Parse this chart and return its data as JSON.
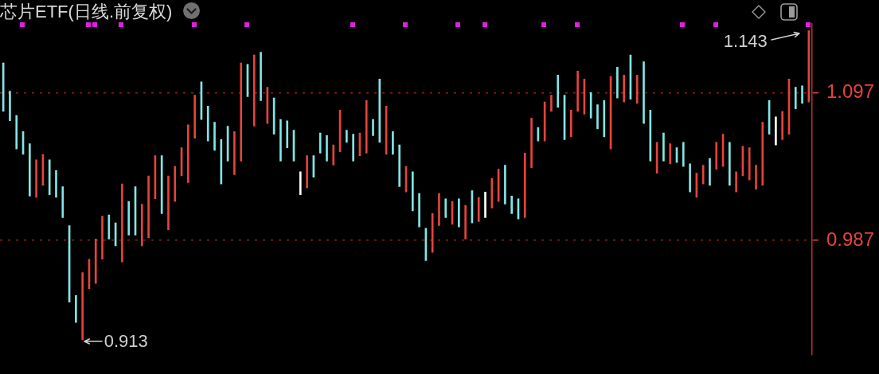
{
  "chart_data": {
    "type": "bar",
    "title": "芯片ETF(日线.前复权)",
    "categories": [
      null,
      null,
      null,
      null,
      null,
      null,
      null,
      null,
      null,
      null,
      null,
      null,
      null,
      null,
      null,
      null,
      null,
      null,
      null,
      null,
      null,
      null,
      null,
      null,
      null,
      null,
      null,
      null,
      null,
      null,
      null,
      null,
      null,
      null,
      null,
      null,
      null,
      null,
      null,
      null,
      null,
      null,
      null,
      null,
      null,
      null,
      null,
      null,
      null,
      null,
      null,
      null,
      null,
      null,
      null,
      null,
      null,
      null,
      null,
      null,
      null,
      null,
      null,
      null,
      null,
      null,
      null,
      null,
      null,
      null,
      null,
      null,
      null,
      null,
      null,
      null,
      null,
      null,
      null,
      null,
      null,
      null,
      null,
      null,
      null,
      null,
      null,
      null,
      null,
      null,
      null,
      null,
      null,
      null,
      null,
      null,
      null,
      null,
      null,
      null,
      null,
      null,
      null,
      null,
      null,
      null,
      null,
      null,
      null,
      null,
      null,
      null,
      null,
      null,
      null,
      null,
      null,
      null,
      null,
      null,
      null,
      null,
      null
    ],
    "base": [
      1.083,
      1.076,
      1.055,
      1.051,
      1.02,
      1.019,
      1.028,
      1.021,
      1.019,
      1.004,
      0.941,
      0.926,
      0.913,
      0.951,
      0.955,
      0.973,
      0.988,
      0.983,
      0.971,
      0.991,
      0.991,
      0.983,
      0.989,
      1.018,
      1.007,
      0.995,
      1.016,
      1.035,
      1.03,
      1.063,
      1.077,
      1.061,
      1.054,
      1.029,
      1.046,
      1.036,
      1.046,
      1.094,
      1.072,
      1.091,
      1.074,
      1.066,
      1.046,
      1.056,
      1.046,
      1.021,
      1.026,
      1.034,
      1.052,
      1.046,
      1.043,
      1.053,
      1.06,
      1.046,
      1.05,
      1.052,
      1.065,
      1.06,
      1.051,
      1.051,
      1.027,
      1.023,
      1.009,
      0.997,
      0.972,
      0.978,
      0.998,
      1.004,
      0.999,
      0.997,
      0.988,
      1.0,
      1.001,
      1.004,
      1.011,
      1.016,
      1.014,
      1.007,
      1.003,
      1.004,
      1.041,
      1.061,
      1.061,
      1.083,
      1.086,
      1.062,
      1.064,
      1.083,
      1.081,
      1.078,
      1.07,
      1.064,
      1.055,
      1.093,
      1.09,
      1.092,
      1.089,
      1.074,
      1.046,
      1.037,
      1.046,
      1.044,
      1.045,
      1.042,
      1.023,
      1.019,
      1.029,
      1.028,
      1.04,
      1.042,
      1.028,
      1.023,
      1.035,
      1.032,
      1.025,
      1.028,
      1.066,
      1.058,
      1.062,
      1.066,
      1.085,
      1.089,
      1.09
    ],
    "values": [
      0.036,
      0.022,
      0.025,
      0.017,
      0.039,
      0.028,
      0.023,
      0.026,
      0.02,
      0.023,
      0.057,
      0.02,
      0.05,
      0.022,
      0.033,
      0.032,
      0.018,
      0.017,
      0.058,
      0.025,
      0.036,
      0.031,
      0.046,
      0.032,
      0.043,
      0.04,
      0.026,
      0.021,
      0.043,
      0.032,
      0.028,
      0.026,
      0.021,
      0.033,
      0.026,
      0.032,
      0.073,
      0.024,
      0.053,
      0.036,
      0.027,
      0.027,
      0.031,
      0.02,
      0.023,
      0.017,
      0.024,
      0.016,
      0.015,
      0.019,
      0.015,
      0.031,
      0.009,
      0.02,
      0.017,
      0.039,
      0.012,
      0.047,
      0.036,
      0.017,
      0.031,
      0.019,
      0.029,
      0.025,
      0.024,
      0.029,
      0.024,
      0.014,
      0.017,
      0.021,
      0.025,
      0.024,
      0.018,
      0.019,
      0.022,
      0.024,
      0.029,
      0.013,
      0.015,
      0.048,
      0.037,
      0.01,
      0.029,
      0.012,
      0.024,
      0.033,
      0.02,
      0.03,
      0.026,
      0.019,
      0.018,
      0.027,
      0.054,
      0.023,
      0.02,
      0.033,
      0.021,
      0.046,
      0.038,
      0.023,
      0.021,
      0.015,
      0.011,
      0.018,
      0.021,
      0.018,
      0.014,
      0.02,
      0.02,
      0.024,
      0.032,
      0.015,
      0.022,
      0.024,
      0.018,
      0.047,
      0.025,
      0.021,
      0.021,
      0.041,
      0.016,
      0.013,
      0.053
    ],
    "colors": [
      "#80e6e6",
      "#80e6e6",
      "#80e6e6",
      "#80e6e6",
      "#80e6e6",
      "#e5433d",
      "#e5433d",
      "#80e6e6",
      "#80e6e6",
      "#80e6e6",
      "#80e6e6",
      "#80e6e6",
      "#e5433d",
      "#e5433d",
      "#e5433d",
      "#e5433d",
      "#80e6e6",
      "#80e6e6",
      "#e5433d",
      "#80e6e6",
      "#80e6e6",
      "#e5433d",
      "#e5433d",
      "#e5433d",
      "#80e6e6",
      "#e5433d",
      "#e5433d",
      "#e5433d",
      "#e5433d",
      "#e5433d",
      "#80e6e6",
      "#80e6e6",
      "#80e6e6",
      "#80e6e6",
      "#80e6e6",
      "#e5433d",
      "#e5433d",
      "#80e6e6",
      "#e5433d",
      "#80e6e6",
      "#e5433d",
      "#80e6e6",
      "#80e6e6",
      "#80e6e6",
      "#80e6e6",
      "#ffffff",
      "#e5433d",
      "#80e6e6",
      "#80e6e6",
      "#80e6e6",
      "#e5433d",
      "#e5433d",
      "#80e6e6",
      "#80e6e6",
      "#e5433d",
      "#e5433d",
      "#80e6e6",
      "#80e6e6",
      "#e5433d",
      "#80e6e6",
      "#80e6e6",
      "#e5433d",
      "#80e6e6",
      "#80e6e6",
      "#80e6e6",
      "#e5433d",
      "#e5433d",
      "#80e6e6",
      "#e5433d",
      "#80e6e6",
      "#e5433d",
      "#80e6e6",
      "#e5433d",
      "#ffffff",
      "#e5433d",
      "#e5433d",
      "#80e6e6",
      "#80e6e6",
      "#80e6e6",
      "#e5433d",
      "#e5433d",
      "#80e6e6",
      "#e5433d",
      "#e5433d",
      "#80e6e6",
      "#80e6e6",
      "#e5433d",
      "#e5433d",
      "#e5433d",
      "#80e6e6",
      "#80e6e6",
      "#80e6e6",
      "#e5433d",
      "#80e6e6",
      "#e5433d",
      "#80e6e6",
      "#e5433d",
      "#80e6e6",
      "#80e6e6",
      "#e5433d",
      "#80e6e6",
      "#e5433d",
      "#80e6e6",
      "#80e6e6",
      "#80e6e6",
      "#e5433d",
      "#e5433d",
      "#80e6e6",
      "#e5433d",
      "#e5433d",
      "#80e6e6",
      "#e5433d",
      "#e5433d",
      "#e5433d",
      "#e5433d",
      "#e5433d",
      "#80e6e6",
      "#ffffff",
      "#e5433d",
      "#e5433d",
      "#80e6e6",
      "#80e6e6",
      "#e5433d"
    ],
    "ylim": [
      0.902,
      1.148
    ],
    "yticks": [
      0.987,
      1.097
    ],
    "grid": "y",
    "tick_labels": "y",
    "annotations": [
      "1.143",
      "0.913"
    ]
  }
}
